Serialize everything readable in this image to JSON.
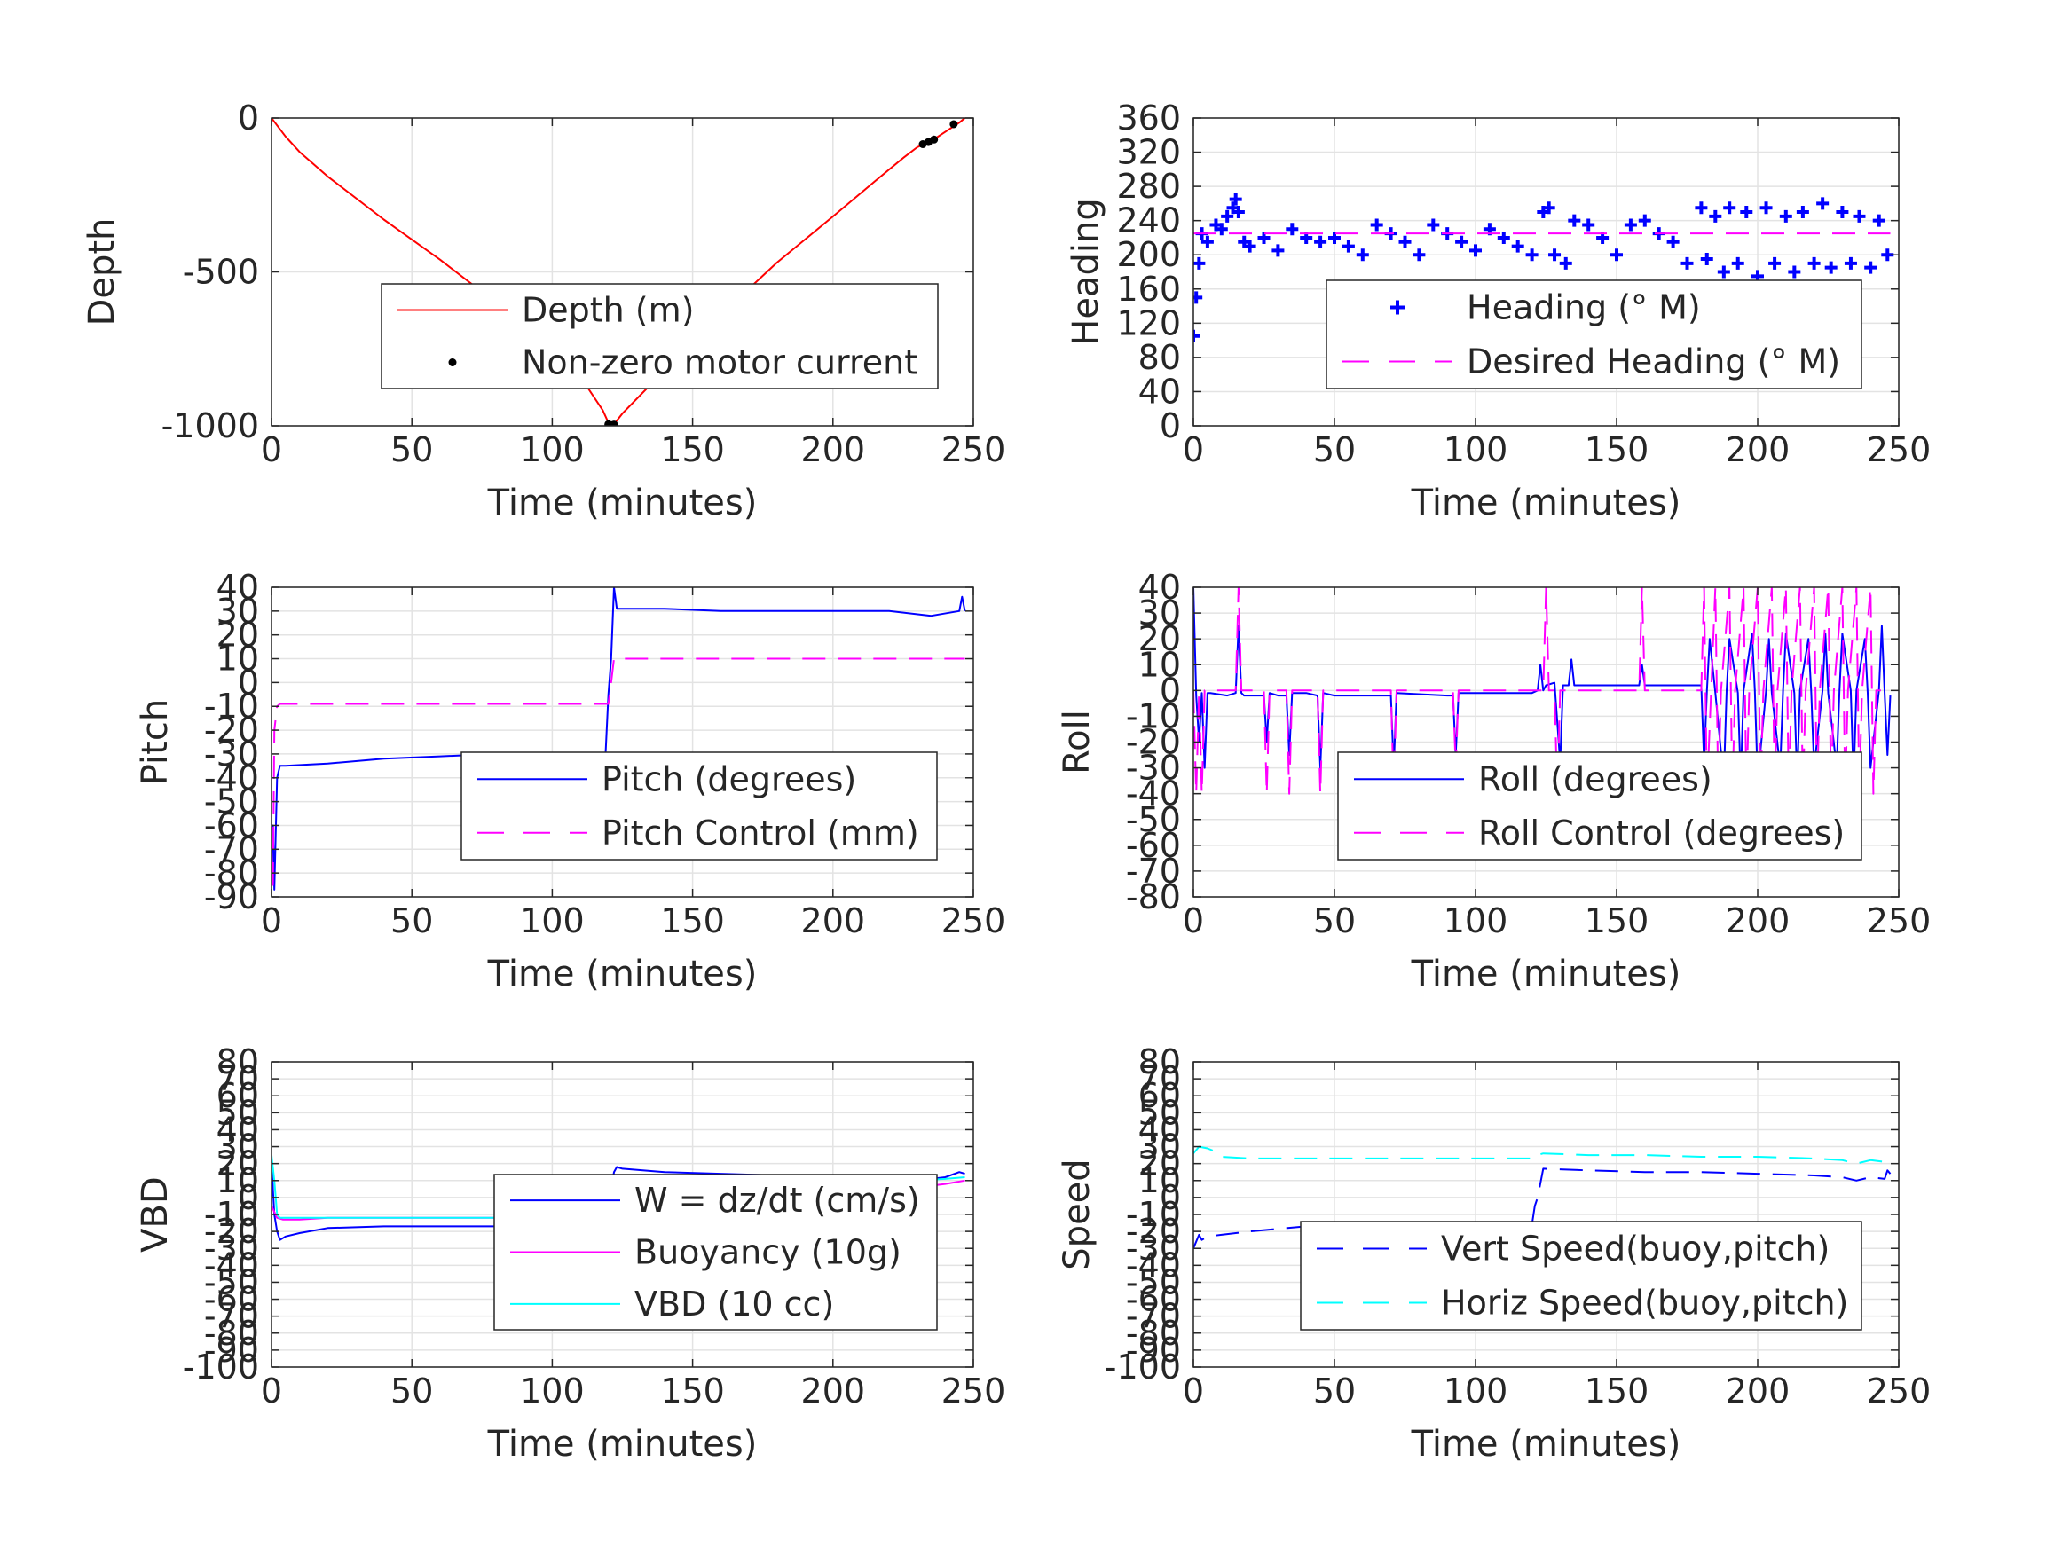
{
  "chart_data": [
    {
      "id": "depth",
      "type": "line",
      "xlabel": "Time (minutes)",
      "ylabel": "Depth",
      "xlim": [
        0,
        250
      ],
      "ylim": [
        -1000,
        0
      ],
      "xticks": [
        0,
        50,
        100,
        150,
        200,
        250
      ],
      "yticks": [
        -1000,
        -500,
        0
      ],
      "grid": true,
      "legend": "center-right",
      "series": [
        {
          "name": "Depth (m)",
          "style": "solid",
          "color": "#ff0000",
          "x": [
            0,
            5,
            10,
            20,
            40,
            60,
            80,
            100,
            110,
            118,
            120,
            122,
            125,
            140,
            160,
            180,
            200,
            215,
            225,
            230,
            235,
            240,
            245,
            247
          ],
          "y": [
            0,
            -60,
            -110,
            -190,
            -330,
            -460,
            -600,
            -750,
            -840,
            -950,
            -990,
            -995,
            -960,
            -820,
            -640,
            -470,
            -320,
            -205,
            -130,
            -95,
            -75,
            -45,
            -15,
            0
          ]
        },
        {
          "name": "Non-zero motor current",
          "style": "dot",
          "color": "#000000",
          "x": [
            120,
            121,
            122,
            232,
            234,
            236,
            243
          ],
          "y": [
            -995,
            -998,
            -996,
            -85,
            -78,
            -70,
            -20
          ]
        }
      ]
    },
    {
      "id": "heading",
      "type": "scatter",
      "xlabel": "Time (minutes)",
      "ylabel": "Heading",
      "xlim": [
        0,
        250
      ],
      "ylim": [
        0,
        360
      ],
      "xticks": [
        0,
        50,
        100,
        150,
        200,
        250
      ],
      "yticks": [
        0,
        40,
        80,
        120,
        160,
        200,
        240,
        280,
        320,
        360
      ],
      "grid": true,
      "legend": "center-right",
      "series": [
        {
          "name": "Heading (° M)",
          "style": "plus",
          "color": "#0000ff",
          "x": [
            0,
            1,
            2,
            3,
            5,
            8,
            10,
            12,
            14,
            15,
            16,
            18,
            20,
            25,
            30,
            35,
            40,
            45,
            50,
            55,
            60,
            65,
            70,
            75,
            80,
            85,
            90,
            95,
            100,
            105,
            110,
            115,
            120,
            124,
            126,
            128,
            130,
            132,
            135,
            140,
            145,
            150,
            155,
            160,
            165,
            170,
            175,
            180,
            182,
            185,
            188,
            190,
            193,
            196,
            200,
            203,
            206,
            210,
            213,
            216,
            220,
            223,
            226,
            230,
            233,
            236,
            240,
            243,
            246
          ],
          "y": [
            105,
            150,
            190,
            225,
            215,
            235,
            230,
            245,
            255,
            265,
            250,
            215,
            210,
            220,
            205,
            230,
            220,
            215,
            220,
            210,
            200,
            235,
            225,
            215,
            200,
            235,
            225,
            215,
            205,
            230,
            220,
            210,
            200,
            250,
            255,
            200,
            150,
            190,
            240,
            235,
            220,
            200,
            235,
            240,
            225,
            215,
            190,
            255,
            195,
            245,
            180,
            255,
            190,
            250,
            175,
            255,
            190,
            245,
            180,
            250,
            190,
            260,
            185,
            250,
            190,
            245,
            185,
            240,
            200
          ]
        },
        {
          "name": "Desired Heading (° M)",
          "style": "dash",
          "color": "#ff00ff",
          "x": [
            0,
            247
          ],
          "y": [
            225,
            225
          ]
        }
      ]
    },
    {
      "id": "pitch",
      "type": "line",
      "xlabel": "Time (minutes)",
      "ylabel": "Pitch",
      "xlim": [
        0,
        250
      ],
      "ylim": [
        -90,
        40
      ],
      "xticks": [
        0,
        50,
        100,
        150,
        200,
        250
      ],
      "yticks": [
        -90,
        -80,
        -70,
        -60,
        -50,
        -40,
        -30,
        -20,
        -10,
        0,
        10,
        20,
        30,
        40
      ],
      "grid": true,
      "legend": "center-right",
      "series": [
        {
          "name": "Pitch (degrees)",
          "style": "solid",
          "color": "#0000ff",
          "x": [
            0,
            0.5,
            1,
            2,
            3,
            5,
            20,
            40,
            60,
            80,
            100,
            119,
            120,
            121,
            122,
            123,
            125,
            140,
            160,
            180,
            200,
            220,
            235,
            245,
            246,
            247
          ],
          "y": [
            -85,
            -60,
            -87,
            -40,
            -35,
            -35,
            -34,
            -32,
            -31,
            -30,
            -30,
            -30,
            -5,
            10,
            40,
            31,
            31,
            31,
            30,
            30,
            30,
            30,
            28,
            30,
            36,
            30
          ]
        },
        {
          "name": "Pitch Control (mm)",
          "style": "dash",
          "color": "#ff00ff",
          "x": [
            0,
            0.5,
            1,
            2,
            3,
            120,
            121,
            122,
            247
          ],
          "y": [
            -70,
            -85,
            -20,
            -10,
            -9,
            -9,
            0,
            10,
            10
          ]
        }
      ]
    },
    {
      "id": "roll",
      "type": "line",
      "xlabel": "Time (minutes)",
      "ylabel": "Roll",
      "xlim": [
        0,
        250
      ],
      "ylim": [
        -80,
        40
      ],
      "xticks": [
        0,
        50,
        100,
        150,
        200,
        250
      ],
      "yticks": [
        -80,
        -70,
        -60,
        -50,
        -40,
        -30,
        -20,
        -10,
        0,
        10,
        20,
        30,
        40
      ],
      "grid": true,
      "legend": "center-right",
      "series": [
        {
          "name": "Roll (degrees)",
          "style": "solid",
          "color": "#0000ff",
          "x": [
            0,
            1,
            2,
            3,
            4,
            5,
            6,
            12,
            15,
            16,
            17,
            18,
            20,
            25,
            26,
            27,
            30,
            33,
            34,
            35,
            40,
            44,
            45,
            46,
            50,
            70,
            71,
            72,
            90,
            92,
            93,
            94,
            110,
            120,
            122,
            123,
            124,
            125,
            128,
            130,
            131,
            133,
            134,
            135,
            150,
            158,
            159,
            160,
            170,
            180,
            181,
            182,
            183,
            185,
            188,
            189,
            190,
            193,
            194,
            195,
            198,
            199,
            200,
            203,
            204,
            205,
            208,
            209,
            210,
            213,
            214,
            215,
            218,
            219,
            220,
            223,
            224,
            225,
            228,
            229,
            230,
            233,
            234,
            235,
            238,
            239,
            240,
            243,
            244,
            245,
            246,
            247
          ],
          "y": [
            40,
            -2,
            -20,
            -1,
            -30,
            -1,
            -1,
            -2,
            -1,
            25,
            -1,
            -2,
            -2,
            -2,
            -20,
            -1,
            -2,
            -2,
            -25,
            -1,
            -1,
            -2,
            -30,
            -1,
            -2,
            -2,
            -30,
            -1,
            -2,
            -2,
            -25,
            -1,
            -1,
            -1,
            0,
            10,
            0,
            2,
            3,
            -28,
            2,
            2,
            12,
            2,
            2,
            2,
            10,
            2,
            2,
            2,
            -28,
            0,
            20,
            -1,
            -35,
            0,
            20,
            -1,
            -35,
            0,
            22,
            0,
            -35,
            0,
            20,
            -1,
            -30,
            0,
            22,
            -1,
            -35,
            0,
            20,
            -1,
            -30,
            0,
            22,
            -1,
            -30,
            0,
            22,
            0,
            -35,
            0,
            20,
            -1,
            -30,
            0,
            25,
            -1,
            -25,
            -2
          ]
        },
        {
          "name": "Roll Control (degrees)",
          "style": "dash",
          "color": "#ff00ff",
          "x": [
            0,
            1,
            2,
            3,
            4,
            5,
            6,
            15,
            16,
            17,
            18,
            25,
            26,
            27,
            33,
            34,
            35,
            44,
            45,
            46,
            70,
            71,
            72,
            92,
            93,
            94,
            124,
            125,
            126,
            128,
            129,
            130,
            158,
            159,
            160,
            180,
            181,
            182,
            185,
            186,
            187,
            190,
            191,
            192,
            195,
            196,
            197,
            200,
            201,
            202,
            205,
            206,
            207,
            210,
            211,
            212,
            215,
            216,
            217,
            220,
            221,
            222,
            225,
            226,
            227,
            230,
            231,
            232,
            235,
            236,
            237,
            240,
            241,
            242,
            245,
            246,
            247
          ],
          "y": [
            0,
            -40,
            0,
            -40,
            0,
            0,
            0,
            0,
            40,
            0,
            0,
            0,
            -40,
            0,
            0,
            -40,
            0,
            0,
            -40,
            0,
            0,
            -40,
            0,
            0,
            -30,
            0,
            0,
            40,
            0,
            0,
            -40,
            0,
            0,
            40,
            0,
            0,
            40,
            -40,
            40,
            -40,
            0,
            40,
            -40,
            0,
            40,
            -40,
            0,
            40,
            -40,
            0,
            40,
            -40,
            0,
            40,
            -40,
            0,
            40,
            -40,
            0,
            40,
            -40,
            0,
            40,
            -40,
            0,
            40,
            -40,
            0,
            40,
            -40,
            0,
            40,
            -40,
            0,
            0,
            0,
            0
          ]
        }
      ]
    },
    {
      "id": "vbd",
      "type": "line",
      "xlabel": "Time (minutes)",
      "ylabel": "VBD",
      "xlim": [
        0,
        250
      ],
      "ylim": [
        -100,
        80
      ],
      "xticks": [
        0,
        50,
        100,
        150,
        200,
        250
      ],
      "yticks": [
        -100,
        -90,
        -80,
        -70,
        -60,
        -50,
        -40,
        -30,
        -20,
        -10,
        0,
        10,
        20,
        30,
        40,
        50,
        60,
        70,
        80
      ],
      "grid": true,
      "legend": "center-right",
      "series": [
        {
          "name": "W = dz/dt (cm/s)",
          "style": "solid",
          "color": "#0000ff",
          "x": [
            0,
            1,
            2,
            3,
            5,
            10,
            20,
            40,
            60,
            80,
            100,
            118,
            120,
            121,
            122,
            123,
            125,
            140,
            160,
            180,
            200,
            220,
            230,
            240,
            245,
            247
          ],
          "y": [
            20,
            -10,
            -20,
            -25,
            -23,
            -21,
            -18,
            -17,
            -17,
            -17,
            -16,
            -16,
            -12,
            5,
            15,
            18,
            17,
            15,
            14,
            13,
            12,
            12,
            10,
            12,
            15,
            14
          ]
        },
        {
          "name": "Buoyancy (10g)",
          "style": "solid",
          "color": "#ff00ff",
          "x": [
            0,
            2,
            4,
            10,
            20,
            120,
            122,
            200,
            222,
            225,
            230,
            240,
            247
          ],
          "y": [
            -5,
            -12,
            -13,
            -13,
            -12,
            -12,
            10,
            10,
            10,
            8,
            6,
            8,
            10
          ]
        },
        {
          "name": "VBD (10 cc)",
          "style": "solid",
          "color": "#00ffff",
          "x": [
            0,
            1,
            2,
            3,
            5,
            120,
            121,
            122,
            230,
            240,
            247
          ],
          "y": [
            25,
            10,
            -10,
            -12,
            -12,
            -12,
            0,
            10,
            10,
            11,
            12
          ]
        }
      ]
    },
    {
      "id": "speed",
      "type": "line",
      "xlabel": "Time (minutes)",
      "ylabel": "Speed",
      "xlim": [
        0,
        250
      ],
      "ylim": [
        -100,
        80
      ],
      "xticks": [
        0,
        50,
        100,
        150,
        200,
        250
      ],
      "yticks": [
        -100,
        -90,
        -80,
        -70,
        -60,
        -50,
        -40,
        -30,
        -20,
        -10,
        0,
        10,
        20,
        30,
        40,
        50,
        60,
        70,
        80
      ],
      "grid": true,
      "legend": "center-right",
      "series": [
        {
          "name": "Vert Speed(buoy,pitch)",
          "style": "dash",
          "color": "#0000ff",
          "x": [
            0,
            2,
            3,
            5,
            10,
            20,
            40,
            60,
            80,
            100,
            119,
            120,
            121,
            122,
            124,
            140,
            160,
            180,
            200,
            220,
            230,
            235,
            240,
            245,
            246,
            247
          ],
          "y": [
            -30,
            -22,
            -25,
            -23,
            -22,
            -20,
            -17,
            -17,
            -17,
            -17,
            -16,
            -16,
            -5,
            0,
            17,
            16,
            15,
            15,
            14,
            13,
            12,
            10,
            12,
            11,
            16,
            14
          ]
        },
        {
          "name": "Horiz Speed(buoy,pitch)",
          "style": "dash",
          "color": "#00ffff",
          "x": [
            0,
            2,
            5,
            8,
            10,
            20,
            40,
            60,
            80,
            100,
            119,
            120,
            121,
            122,
            124,
            140,
            160,
            180,
            200,
            220,
            230,
            235,
            240,
            245,
            247
          ],
          "y": [
            26,
            30,
            29,
            27,
            24,
            23,
            23,
            23,
            23,
            23,
            23,
            23,
            23,
            25,
            26,
            25,
            25,
            24,
            24,
            23,
            22,
            20,
            22,
            21,
            22
          ]
        }
      ]
    }
  ]
}
